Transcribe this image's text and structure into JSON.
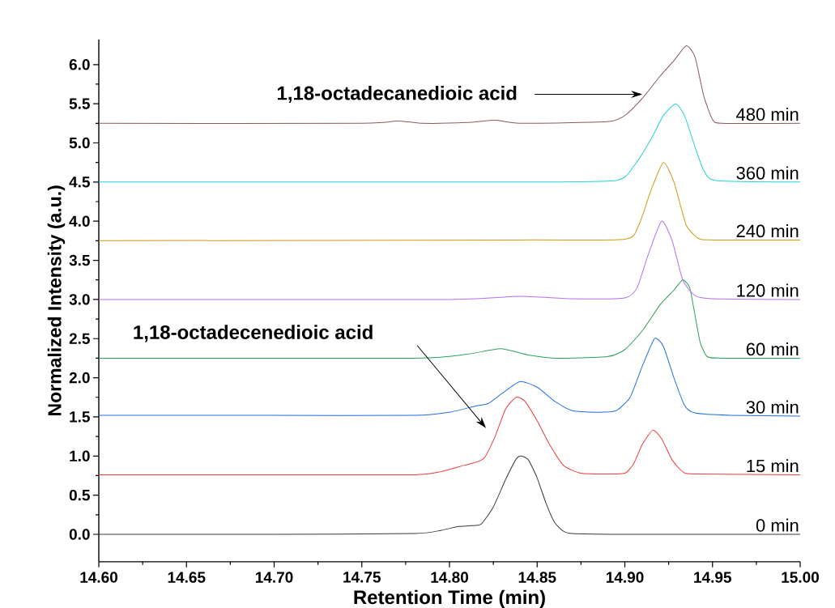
{
  "chart_data": {
    "type": "line",
    "xlabel": "Retention Time (min)",
    "ylabel": "Normalized Intensity (a.u.)",
    "xlim": [
      14.6,
      15.0
    ],
    "ylim": [
      -0.35,
      6.32
    ],
    "xticks": [
      {
        "value": 14.6,
        "label": "14.60"
      },
      {
        "value": 14.65,
        "label": "14.65"
      },
      {
        "value": 14.7,
        "label": "14.70"
      },
      {
        "value": 14.75,
        "label": "14.75"
      },
      {
        "value": 14.8,
        "label": "14.80"
      },
      {
        "value": 14.85,
        "label": "14.85"
      },
      {
        "value": 14.9,
        "label": "14.90"
      },
      {
        "value": 14.95,
        "label": "14.95"
      },
      {
        "value": 15.0,
        "label": "15.00"
      }
    ],
    "yticks": [
      {
        "value": 0,
        "label": "0.0"
      },
      {
        "value": 0.5,
        "label": "0.5"
      },
      {
        "value": 1,
        "label": "1.0"
      },
      {
        "value": 1.5,
        "label": "1.5"
      },
      {
        "value": 2,
        "label": "2.0"
      },
      {
        "value": 2.5,
        "label": "2.5"
      },
      {
        "value": 3,
        "label": "3.0"
      },
      {
        "value": 3.5,
        "label": "3.5"
      },
      {
        "value": 4,
        "label": "4.0"
      },
      {
        "value": 4.5,
        "label": "4.5"
      },
      {
        "value": 5,
        "label": "5.0"
      },
      {
        "value": 5.5,
        "label": "5.5"
      },
      {
        "value": 6,
        "label": "6.0"
      }
    ],
    "annotations": [
      {
        "text": "1,18-octadecanedioic acid",
        "x": 14.91,
        "y": 5.62
      },
      "1,18-octadecenedioic acid"
    ],
    "series": [
      {
        "name": "0 min",
        "color": "#3a3a3a",
        "x": [
          14.6,
          14.7,
          14.78,
          14.795,
          14.805,
          14.812,
          14.818,
          14.825,
          14.832,
          14.838,
          14.841,
          14.845,
          14.85,
          14.855,
          14.86,
          14.865,
          14.87,
          14.9,
          15.0
        ],
        "values": [
          0,
          0,
          0.01,
          0.05,
          0.1,
          0.11,
          0.13,
          0.35,
          0.7,
          0.96,
          1.0,
          0.95,
          0.72,
          0.4,
          0.15,
          0.04,
          0.01,
          0,
          0
        ]
      },
      {
        "name": "15 min",
        "color": "#f03c3c",
        "x": [
          14.6,
          14.7,
          14.78,
          14.795,
          14.808,
          14.815,
          14.82,
          14.826,
          14.832,
          14.838,
          14.843,
          14.85,
          14.857,
          14.865,
          14.875,
          14.89,
          14.9,
          14.905,
          14.91,
          14.916,
          14.921,
          14.927,
          14.933,
          14.94,
          15.0
        ],
        "values": [
          0.76,
          0.76,
          0.76,
          0.8,
          0.88,
          0.92,
          0.98,
          1.25,
          1.6,
          1.75,
          1.7,
          1.45,
          1.15,
          0.88,
          0.78,
          0.77,
          0.78,
          0.9,
          1.15,
          1.33,
          1.22,
          0.95,
          0.8,
          0.77,
          0.76
        ]
      },
      {
        "name": "30 min",
        "color": "#1f6fe0",
        "x": [
          14.6,
          14.7,
          14.78,
          14.8,
          14.815,
          14.822,
          14.83,
          14.84,
          14.85,
          14.86,
          14.87,
          14.885,
          14.895,
          14.903,
          14.91,
          14.917,
          14.922,
          14.928,
          14.934,
          14.94,
          14.96,
          15.0
        ],
        "values": [
          1.52,
          1.52,
          1.52,
          1.56,
          1.64,
          1.67,
          1.8,
          1.95,
          1.88,
          1.7,
          1.58,
          1.56,
          1.58,
          1.75,
          2.15,
          2.5,
          2.4,
          2.0,
          1.65,
          1.55,
          1.52,
          1.51
        ]
      },
      {
        "name": "60 min",
        "color": "#2ca05a",
        "x": [
          14.6,
          14.78,
          14.81,
          14.829,
          14.845,
          14.86,
          14.89,
          14.9,
          14.91,
          14.92,
          14.928,
          14.933,
          14.937,
          14.94,
          14.943,
          14.947,
          14.955,
          15.0
        ],
        "values": [
          2.25,
          2.25,
          2.3,
          2.37,
          2.29,
          2.25,
          2.27,
          2.36,
          2.6,
          2.93,
          3.12,
          3.25,
          3.15,
          2.8,
          2.45,
          2.27,
          2.25,
          2.25
        ]
      },
      {
        "name": "120 min",
        "color": "#b26ef0",
        "x": [
          14.6,
          14.8,
          14.84,
          14.87,
          14.9,
          14.907,
          14.913,
          14.921,
          14.927,
          14.933,
          14.94,
          14.95,
          15.0
        ],
        "values": [
          3.0,
          3.0,
          3.04,
          3.01,
          3.02,
          3.15,
          3.55,
          4.0,
          3.75,
          3.25,
          3.05,
          3.01,
          3.0
        ]
      },
      {
        "name": "240 min",
        "color": "#d09a10",
        "x": [
          14.6,
          14.84,
          14.9,
          14.908,
          14.915,
          14.922,
          14.928,
          14.935,
          14.942,
          14.95,
          15.0
        ],
        "values": [
          3.75,
          3.76,
          3.77,
          3.95,
          4.4,
          4.75,
          4.5,
          3.95,
          3.78,
          3.76,
          3.76
        ]
      },
      {
        "name": "360 min",
        "color": "#22d3d3",
        "x": [
          14.6,
          14.77,
          14.84,
          14.895,
          14.905,
          14.915,
          14.922,
          14.929,
          14.934,
          14.94,
          14.945,
          14.952,
          15.0
        ],
        "values": [
          4.5,
          4.5,
          4.5,
          4.52,
          4.7,
          5.05,
          5.35,
          5.5,
          5.35,
          4.95,
          4.65,
          4.52,
          4.5
        ]
      },
      {
        "name": "480 min",
        "color": "#8b5a5a",
        "x": [
          14.6,
          14.75,
          14.77,
          14.785,
          14.81,
          14.826,
          14.84,
          14.89,
          14.9,
          14.91,
          14.92,
          14.928,
          14.935,
          14.94,
          14.945,
          14.95,
          14.955,
          15.0
        ],
        "values": [
          5.25,
          5.25,
          5.28,
          5.25,
          5.26,
          5.29,
          5.25,
          5.27,
          5.35,
          5.57,
          5.85,
          6.05,
          6.24,
          6.1,
          5.6,
          5.3,
          5.25,
          5.25
        ]
      }
    ]
  }
}
